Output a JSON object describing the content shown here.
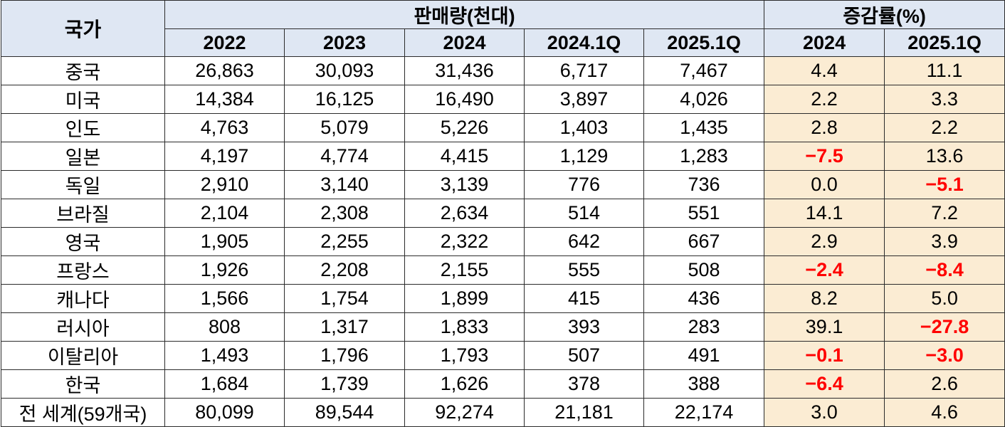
{
  "header": {
    "country": "국가",
    "sales_group": "판매량(천대)",
    "growth_group": "증감률(%)",
    "sales_columns": [
      "2022",
      "2023",
      "2024",
      "2024.1Q",
      "2025.1Q"
    ],
    "growth_columns": [
      "2024",
      "2025.1Q"
    ]
  },
  "rows": [
    {
      "country": "중국",
      "sales": [
        "26,863",
        "30,093",
        "31,436",
        "6,717",
        "7,467"
      ],
      "growth": [
        "4.4",
        "11.1"
      ],
      "neg": [
        false,
        false
      ]
    },
    {
      "country": "미국",
      "sales": [
        "14,384",
        "16,125",
        "16,490",
        "3,897",
        "4,026"
      ],
      "growth": [
        "2.2",
        "3.3"
      ],
      "neg": [
        false,
        false
      ]
    },
    {
      "country": "인도",
      "sales": [
        "4,763",
        "5,079",
        "5,226",
        "1,403",
        "1,435"
      ],
      "growth": [
        "2.8",
        "2.2"
      ],
      "neg": [
        false,
        false
      ]
    },
    {
      "country": "일본",
      "sales": [
        "4,197",
        "4,774",
        "4,415",
        "1,129",
        "1,283"
      ],
      "growth": [
        "−7.5",
        "13.6"
      ],
      "neg": [
        true,
        false
      ]
    },
    {
      "country": "독일",
      "sales": [
        "2,910",
        "3,140",
        "3,139",
        "776",
        "736"
      ],
      "growth": [
        "0.0",
        "−5.1"
      ],
      "neg": [
        false,
        true
      ]
    },
    {
      "country": "브라질",
      "sales": [
        "2,104",
        "2,308",
        "2,634",
        "514",
        "551"
      ],
      "growth": [
        "14.1",
        "7.2"
      ],
      "neg": [
        false,
        false
      ]
    },
    {
      "country": "영국",
      "sales": [
        "1,905",
        "2,255",
        "2,322",
        "642",
        "667"
      ],
      "growth": [
        "2.9",
        "3.9"
      ],
      "neg": [
        false,
        false
      ]
    },
    {
      "country": "프랑스",
      "sales": [
        "1,926",
        "2,208",
        "2,155",
        "555",
        "508"
      ],
      "growth": [
        "−2.4",
        "−8.4"
      ],
      "neg": [
        true,
        true
      ]
    },
    {
      "country": "캐나다",
      "sales": [
        "1,566",
        "1,754",
        "1,899",
        "415",
        "436"
      ],
      "growth": [
        "8.2",
        "5.0"
      ],
      "neg": [
        false,
        false
      ]
    },
    {
      "country": "러시아",
      "sales": [
        "808",
        "1,317",
        "1,833",
        "393",
        "283"
      ],
      "growth": [
        "39.1",
        "−27.8"
      ],
      "neg": [
        false,
        true
      ]
    },
    {
      "country": "이탈리아",
      "sales": [
        "1,493",
        "1,796",
        "1,793",
        "507",
        "491"
      ],
      "growth": [
        "−0.1",
        "−3.0"
      ],
      "neg": [
        true,
        true
      ]
    },
    {
      "country": "한국",
      "sales": [
        "1,684",
        "1,739",
        "1,626",
        "378",
        "388"
      ],
      "growth": [
        "−6.4",
        "2.6"
      ],
      "neg": [
        true,
        false
      ]
    },
    {
      "country": "전 세계(59개국)",
      "sales": [
        "80,099",
        "89,544",
        "92,274",
        "21,181",
        "22,174"
      ],
      "growth": [
        "3.0",
        "4.6"
      ],
      "neg": [
        false,
        false
      ]
    }
  ],
  "colors": {
    "header_bg": "#dfe7f3",
    "growth_bg": "#fbecd3",
    "negative_text": "#ff0000",
    "border": "#2b2b2b"
  }
}
